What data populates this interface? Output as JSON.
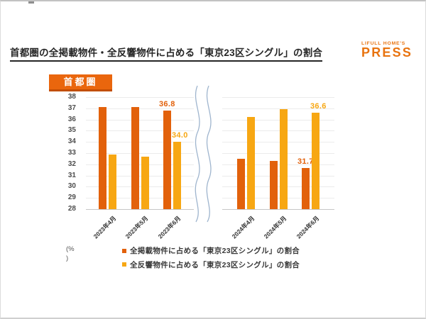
{
  "header": {
    "title": "首都圏の全掲載物件・全反響物件に占める「東京23区シングル」の割合",
    "logo_top": "LIFULL HOME'S",
    "logo_main": "PRESS"
  },
  "region_badge": "首都圏",
  "unit": {
    "line1": "(%",
    "line2": ")"
  },
  "colors": {
    "brand_orange": "#E8730F",
    "badge_bg": "#EA660D",
    "badge_shadow": "#C24E04",
    "series_listed": "#E2610B",
    "series_response": "#F7A713",
    "gridline": "#EBEBEB",
    "baseline": "#C6C6C6",
    "axis_break_line": "#9FB5CE"
  },
  "chart_data": {
    "type": "bar",
    "title": "首都圏の全掲載物件・全反響物件に占める「東京23区シングル」の割合",
    "ylabel": "(%)",
    "ylim": [
      28,
      38
    ],
    "yticks": [
      38,
      37,
      36,
      35,
      34,
      33,
      32,
      31,
      30,
      29,
      28
    ],
    "grid": true,
    "axis_break_between_groups": true,
    "legend_position": "bottom",
    "series_legend": [
      {
        "label": "全掲載物件に占める「東京23区シングル」の割合",
        "color": "#E2610B"
      },
      {
        "label": "全反響物件に占める「東京23区シングル」の割合",
        "color": "#F7A713"
      }
    ],
    "groups": [
      {
        "categories": [
          "2023年4月",
          "2023年5月",
          "2023年6月"
        ],
        "series": [
          {
            "name": "全掲載物件に占める「東京23区シングル」の割合",
            "color": "#E2610B",
            "values": [
              37.1,
              37.1,
              36.8
            ],
            "point_labels": [
              "",
              "",
              "36.8"
            ]
          },
          {
            "name": "全反響物件に占める「東京23区シングル」の割合",
            "color": "#F7A713",
            "values": [
              32.9,
              32.7,
              34.0
            ],
            "point_labels": [
              "",
              "",
              "34.0"
            ]
          }
        ]
      },
      {
        "categories": [
          "2024年4月",
          "2024年5月",
          "2024年6月"
        ],
        "series": [
          {
            "name": "全掲載物件に占める「東京23区シングル」の割合",
            "color": "#E2610B",
            "values": [
              32.5,
              32.3,
              31.7
            ],
            "point_labels": [
              "",
              "",
              "31.7"
            ]
          },
          {
            "name": "全反響物件に占める「東京23区シングル」の割合",
            "color": "#F7A713",
            "values": [
              36.2,
              36.9,
              36.6
            ],
            "point_labels": [
              "",
              "",
              "36.6"
            ]
          }
        ]
      }
    ]
  }
}
